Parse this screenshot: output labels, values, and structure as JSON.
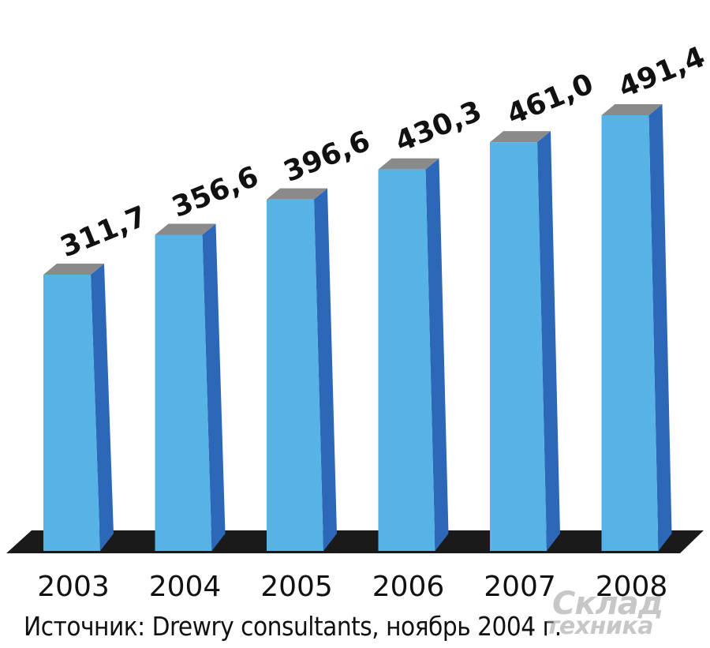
{
  "chart_data": {
    "type": "bar",
    "categories": [
      "2003",
      "2004",
      "2005",
      "2006",
      "2007",
      "2008"
    ],
    "values": [
      311.7,
      356.6,
      396.6,
      430.3,
      461.0,
      491.4
    ],
    "value_labels": [
      "311,7",
      "356,6",
      "396,6",
      "430,3",
      "461,0",
      "491,4"
    ],
    "title": "",
    "xlabel": "",
    "ylabel": "",
    "ylim": [
      0,
      500
    ],
    "grid": false,
    "legend": "none",
    "colors": {
      "bar_front": "#57B3E6",
      "bar_side": "#2C67B8",
      "bar_top": "#8A8A8A",
      "floor": "#1A1A1A"
    }
  },
  "source": "Источник: Drewry consultants, ноябрь 2004 г.",
  "watermark": {
    "line1": "Склад",
    "line2": "техника"
  }
}
